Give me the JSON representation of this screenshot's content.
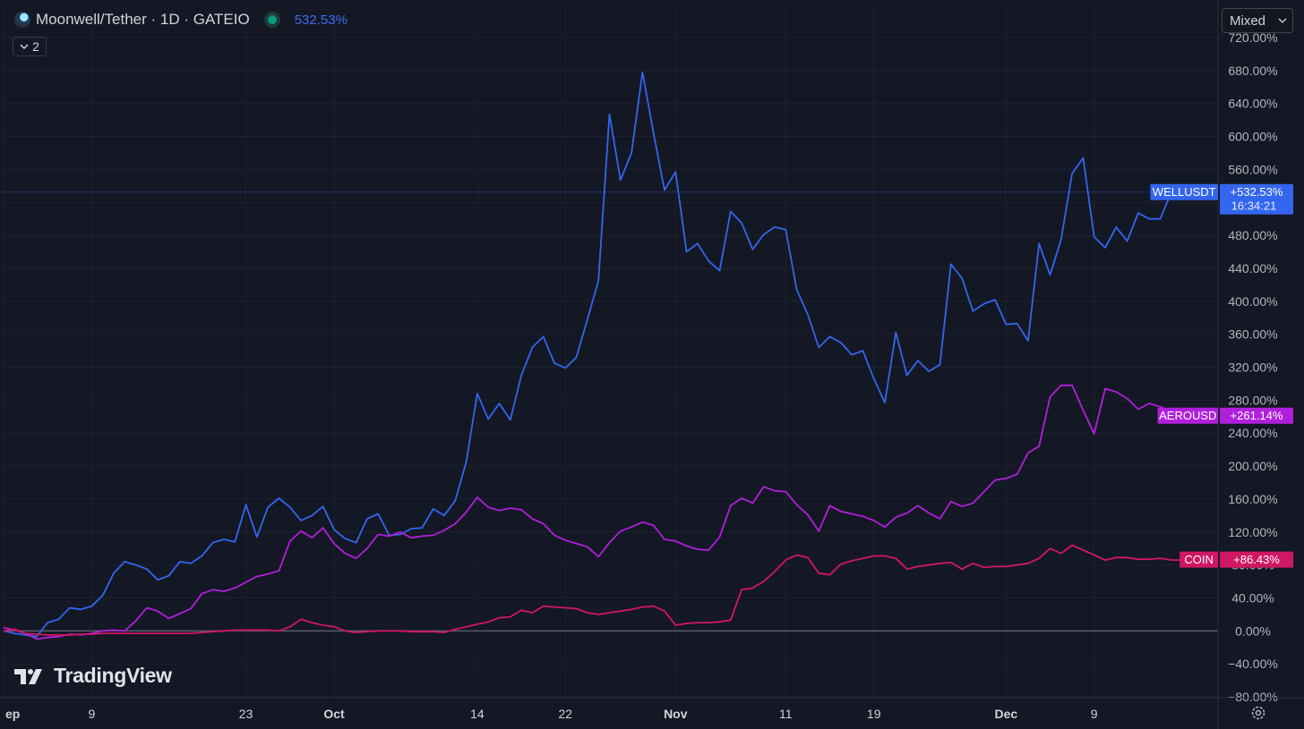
{
  "header": {
    "symbol_title": "Moonwell/Tether · 1D · GATEIO",
    "last_value": "532.53%",
    "collapse_count": "2",
    "scale_mode": "Mixed"
  },
  "watermark": "TradingView",
  "icons": {
    "symbol_logo": "moonwell-logo-icon",
    "status": "market-status-dot-icon",
    "collapse": "chevron-down-icon",
    "scale_dropdown": "chevron-down-icon",
    "settings": "settings-gear-icon",
    "watermark_logo": "tradingview-logo-icon"
  },
  "colors": {
    "background": "#131722",
    "grid": "#1e2230",
    "well": "#3366ee",
    "aero": "#b01fdb",
    "coin": "#d01763",
    "zero_line": "#787b86"
  },
  "chart_data": {
    "type": "line",
    "ylim": [
      -80,
      720
    ],
    "y_ticks": [
      -80,
      -40,
      0,
      40,
      80,
      120,
      160,
      200,
      240,
      280,
      320,
      360,
      400,
      440,
      480,
      520,
      560,
      600,
      640,
      680,
      720
    ],
    "y_tick_labels": [
      "−80.00%",
      "−40.00%",
      "0.00%",
      "40.00%",
      "80.00%",
      "120.00%",
      "160.00%",
      "200.00%",
      "240.00%",
      "280.00%",
      "320.00%",
      "360.00%",
      "400.00%",
      "440.00%",
      "480.00%",
      "520.00%",
      "560.00%",
      "600.00%",
      "640.00%",
      "680.00%",
      "720.00%"
    ],
    "x_ticks": [
      {
        "x": 0,
        "label": "ep"
      },
      {
        "x": 8,
        "label": "9"
      },
      {
        "x": 22,
        "label": "23"
      },
      {
        "x": 30,
        "label": "Oct"
      },
      {
        "x": 43,
        "label": "14"
      },
      {
        "x": 51,
        "label": "22"
      },
      {
        "x": 61,
        "label": "Nov"
      },
      {
        "x": 71,
        "label": "11"
      },
      {
        "x": 79,
        "label": "19"
      },
      {
        "x": 91,
        "label": "Dec"
      },
      {
        "x": 99,
        "label": "9"
      }
    ],
    "series": [
      {
        "name": "WELLUSDT",
        "badge": "+532.53%",
        "countdown": "16:34:21",
        "last": 532.53,
        "values": [
          0,
          -3,
          -5,
          -7,
          10,
          14,
          28,
          26,
          30,
          43,
          70,
          84,
          80,
          75,
          62,
          67,
          84,
          82,
          91,
          107,
          111,
          108,
          153,
          114,
          150,
          161,
          150,
          134,
          140,
          151,
          123,
          112,
          107,
          136,
          142,
          116,
          117,
          124,
          125,
          148,
          140,
          158,
          205,
          288,
          257,
          276,
          256,
          310,
          344,
          357,
          325,
          319,
          332,
          378,
          425,
          627,
          547,
          580,
          678,
          604,
          535,
          557,
          460,
          470,
          449,
          437,
          509,
          495,
          463,
          481,
          490,
          487,
          414,
          384,
          344,
          357,
          350,
          335,
          340,
          306,
          277,
          362,
          310,
          328,
          315,
          323,
          445,
          428,
          388,
          397,
          402,
          372,
          373,
          352,
          470,
          432,
          475,
          555,
          574,
          478,
          465,
          490,
          473,
          507,
          500,
          500,
          532,
          532,
          532
        ]
      },
      {
        "name": "AEROUSD",
        "badge": "+261.14%",
        "last": 261.14,
        "values": [
          4,
          1,
          -3,
          -10,
          -8,
          -7,
          -4,
          -5,
          -3,
          0,
          1,
          0,
          12,
          28,
          24,
          15,
          21,
          27,
          45,
          50,
          48,
          52,
          59,
          66,
          69,
          73,
          109,
          121,
          113,
          125,
          106,
          94,
          88,
          100,
          117,
          115,
          120,
          113,
          115,
          116,
          122,
          130,
          144,
          162,
          150,
          146,
          149,
          147,
          136,
          130,
          116,
          110,
          106,
          102,
          90,
          107,
          121,
          126,
          132,
          128,
          111,
          109,
          103,
          99,
          98,
          114,
          152,
          161,
          155,
          175,
          170,
          169,
          153,
          141,
          121,
          152,
          145,
          142,
          139,
          134,
          126,
          138,
          143,
          152,
          143,
          136,
          157,
          151,
          155,
          169,
          183,
          185,
          190,
          216,
          224,
          284,
          298,
          298,
          268,
          239,
          294,
          290,
          282,
          269,
          276,
          272,
          266,
          263,
          261
        ]
      },
      {
        "name": "COIN",
        "badge": "+86.43%",
        "last": 86.43,
        "values": [
          0,
          2,
          -3,
          -4,
          -5,
          -5,
          -5,
          -4,
          -4,
          -3,
          -3,
          -3,
          -3,
          -3,
          -3,
          -3,
          -3,
          -3,
          -2,
          -1,
          0,
          1,
          1,
          1,
          1,
          0,
          5,
          14,
          10,
          7,
          5,
          0,
          -2,
          -1,
          0,
          0,
          0,
          -1,
          -1,
          -1,
          -2,
          2,
          5,
          8,
          11,
          16,
          17,
          25,
          22,
          30,
          29,
          28,
          27,
          22,
          20,
          22,
          24,
          26,
          29,
          30,
          24,
          7,
          9,
          10,
          10,
          11,
          13,
          50,
          52,
          60,
          72,
          86,
          92,
          89,
          70,
          68,
          81,
          85,
          88,
          91,
          91,
          88,
          75,
          78,
          80,
          82,
          83,
          75,
          82,
          77,
          78,
          78,
          80,
          82,
          88,
          100,
          94,
          104,
          98,
          92,
          86,
          89,
          89,
          87,
          87,
          88,
          86,
          86,
          86
        ]
      }
    ]
  }
}
